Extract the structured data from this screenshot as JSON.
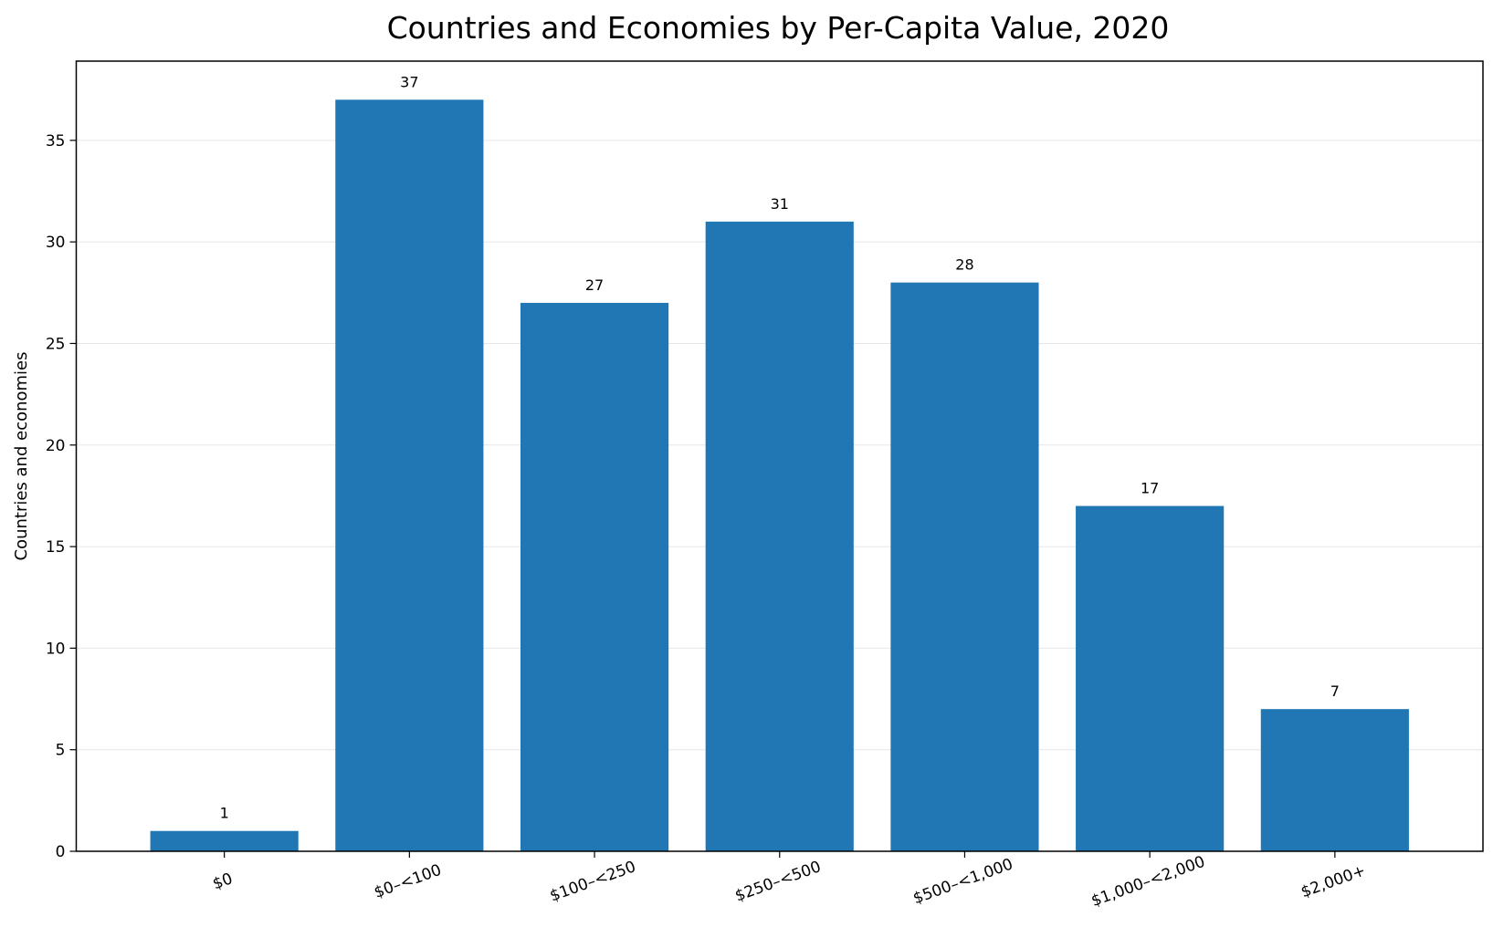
{
  "chart_data": {
    "type": "bar",
    "title": "Countries and Economies by Per-Capita Value, 2020",
    "xlabel": "",
    "ylabel": "Countries and economies",
    "categories": [
      "$0",
      "$0–<100",
      "$100–<250",
      "$250–<500",
      "$500–<1,000",
      "$1,000–<2,000",
      "$2,000+"
    ],
    "values": [
      1,
      37,
      27,
      31,
      28,
      17,
      7
    ],
    "data_labels": [
      "1",
      "37",
      "27",
      "31",
      "28",
      "17",
      "7"
    ],
    "ylim": [
      0,
      38.9
    ],
    "yticks": [
      0,
      5,
      10,
      15,
      20,
      25,
      30,
      35
    ],
    "ytick_labels": [
      "0",
      "5",
      "10",
      "15",
      "20",
      "25",
      "30",
      "35"
    ],
    "bar_color": "#2077b4",
    "grid": "y-major",
    "legend": "none"
  }
}
